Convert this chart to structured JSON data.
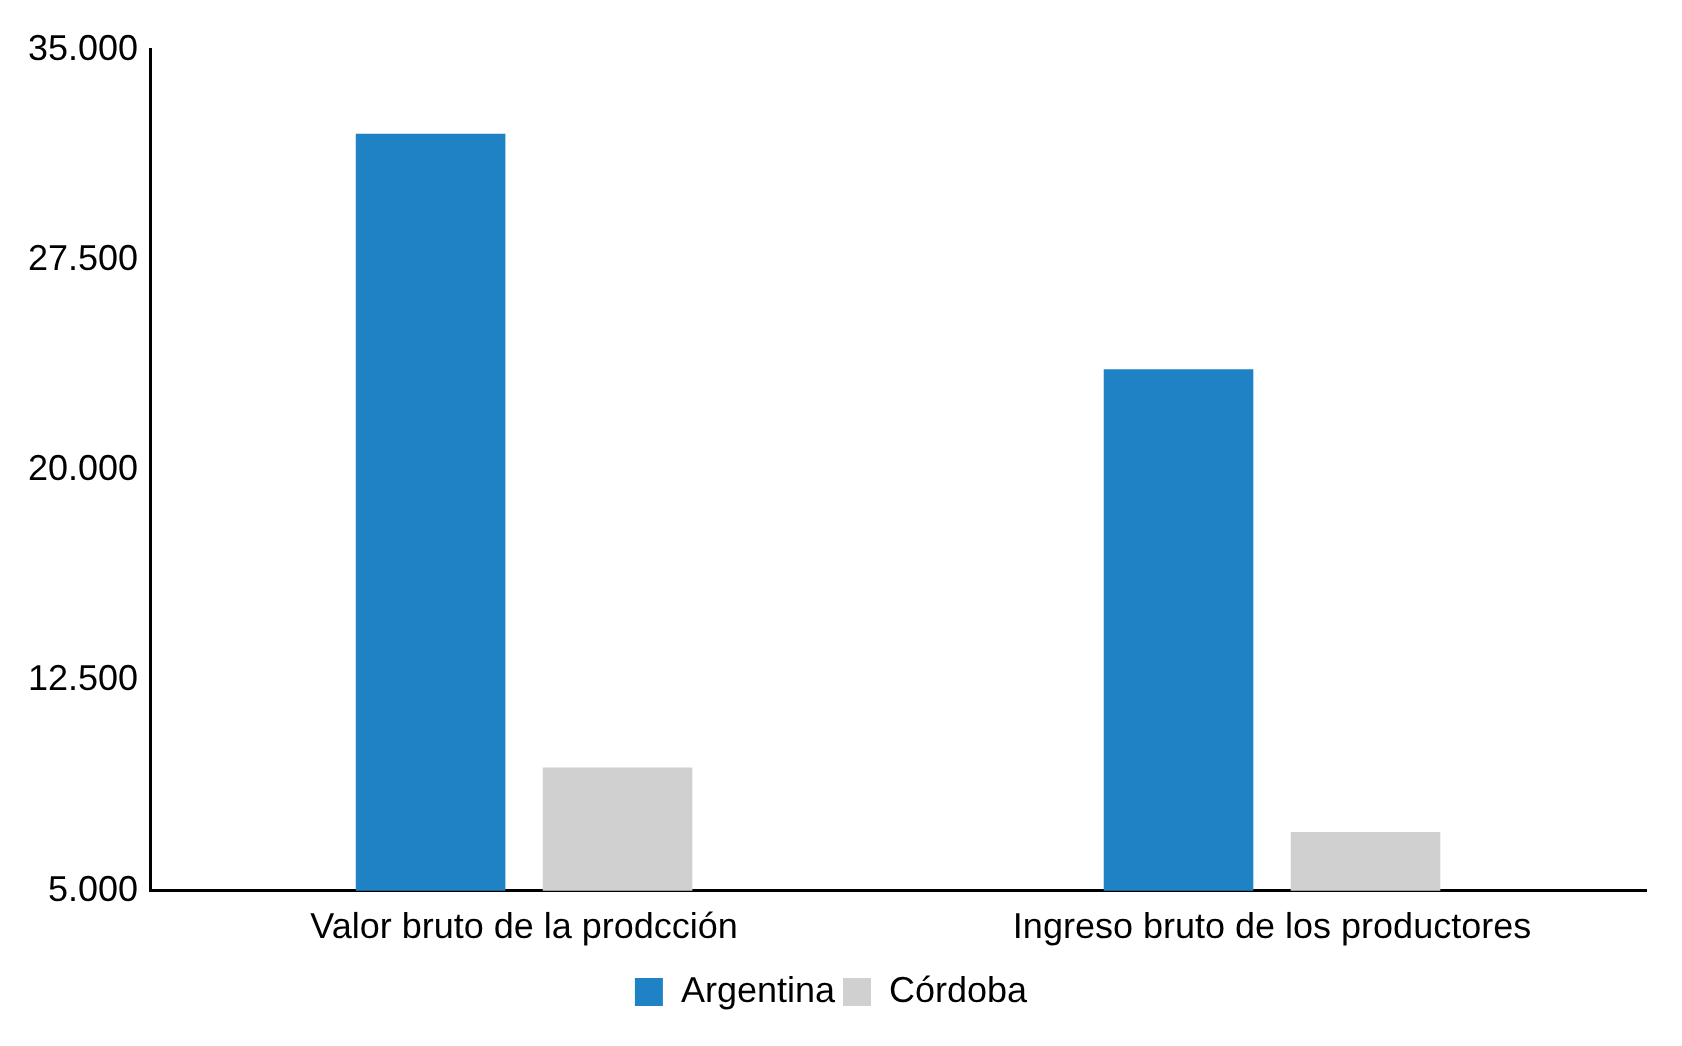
{
  "chart_data": {
    "type": "bar",
    "categories": [
      "Valor bruto de la prodcción",
      "Ingreso bruto de los productores"
    ],
    "series": [
      {
        "name": "Argentina",
        "color": "#1f82c4",
        "values": [
          32000,
          23600
        ]
      },
      {
        "name": "Córdoba",
        "color": "#d0d0d0",
        "values": [
          9400,
          7100
        ]
      }
    ],
    "ylim": [
      5000,
      35000
    ],
    "yticks": [
      {
        "value": 5000,
        "label": "5.000"
      },
      {
        "value": 12500,
        "label": "12.500"
      },
      {
        "value": 20000,
        "label": "20.000"
      },
      {
        "value": 27500,
        "label": "27.500"
      },
      {
        "value": 35000,
        "label": "35.000"
      }
    ],
    "grid": false,
    "legend": "bottom"
  }
}
